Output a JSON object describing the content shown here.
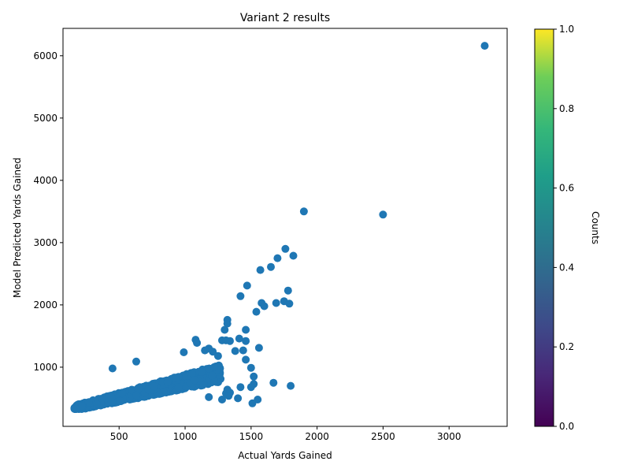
{
  "chart_data": {
    "type": "scatter",
    "title": "Variant 2 results",
    "xlabel": "Actual Yards Gained",
    "ylabel": "Model Predicted Yards Gained",
    "xlim": [
      75,
      3440
    ],
    "ylim": [
      50,
      6440
    ],
    "x_ticks": [
      500,
      1000,
      1500,
      2000,
      2500,
      3000
    ],
    "y_ticks": [
      1000,
      2000,
      3000,
      4000,
      5000,
      6000
    ],
    "marker_color": "#1f77b4",
    "grid": false,
    "colorbar": {
      "label": "Counts",
      "colormap": "viridis",
      "range": [
        0,
        1
      ],
      "ticks": [
        "0.0",
        "0.2",
        "0.4",
        "0.6",
        "0.8",
        "1.0"
      ]
    },
    "outliers": [
      {
        "x": 3270,
        "y": 6160
      },
      {
        "x": 1900,
        "y": 3500
      },
      {
        "x": 2500,
        "y": 3450
      },
      {
        "x": 1760,
        "y": 2900
      },
      {
        "x": 1820,
        "y": 2790
      },
      {
        "x": 1700,
        "y": 2750
      },
      {
        "x": 1650,
        "y": 2610
      },
      {
        "x": 1570,
        "y": 2560
      },
      {
        "x": 1470,
        "y": 2310
      },
      {
        "x": 1780,
        "y": 2230
      },
      {
        "x": 1420,
        "y": 2140
      },
      {
        "x": 1750,
        "y": 2060
      },
      {
        "x": 1690,
        "y": 2030
      },
      {
        "x": 1580,
        "y": 2030
      },
      {
        "x": 1600,
        "y": 1980
      },
      {
        "x": 1790,
        "y": 2020
      },
      {
        "x": 1540,
        "y": 1890
      },
      {
        "x": 1320,
        "y": 1760
      },
      {
        "x": 1320,
        "y": 1700
      },
      {
        "x": 1300,
        "y": 1600
      },
      {
        "x": 1460,
        "y": 1600
      },
      {
        "x": 1080,
        "y": 1440
      },
      {
        "x": 1090,
        "y": 1390
      },
      {
        "x": 1280,
        "y": 1430
      },
      {
        "x": 1310,
        "y": 1430
      },
      {
        "x": 1410,
        "y": 1460
      },
      {
        "x": 1460,
        "y": 1420
      },
      {
        "x": 1340,
        "y": 1420
      },
      {
        "x": 1560,
        "y": 1310
      },
      {
        "x": 1180,
        "y": 1300
      },
      {
        "x": 1150,
        "y": 1270
      },
      {
        "x": 1380,
        "y": 1260
      },
      {
        "x": 1440,
        "y": 1270
      },
      {
        "x": 990,
        "y": 1240
      },
      {
        "x": 1460,
        "y": 1120
      },
      {
        "x": 1500,
        "y": 990
      },
      {
        "x": 630,
        "y": 1090
      },
      {
        "x": 450,
        "y": 980
      },
      {
        "x": 1520,
        "y": 850
      },
      {
        "x": 1670,
        "y": 750
      },
      {
        "x": 1520,
        "y": 730
      },
      {
        "x": 1420,
        "y": 680
      },
      {
        "x": 1500,
        "y": 680
      },
      {
        "x": 1800,
        "y": 700
      },
      {
        "x": 1320,
        "y": 640
      },
      {
        "x": 1310,
        "y": 580
      },
      {
        "x": 1340,
        "y": 590
      },
      {
        "x": 1330,
        "y": 540
      },
      {
        "x": 1400,
        "y": 500
      },
      {
        "x": 1280,
        "y": 480
      },
      {
        "x": 1550,
        "y": 480
      },
      {
        "x": 1510,
        "y": 420
      },
      {
        "x": 1180,
        "y": 520
      },
      {
        "x": 1220,
        "y": 1000
      },
      {
        "x": 1250,
        "y": 1180
      },
      {
        "x": 1210,
        "y": 1250
      }
    ],
    "cluster": {
      "x_min": 160,
      "x_max": 1270,
      "y_base": 330,
      "y_slope": 0.48,
      "y_spread": 280,
      "count": 900
    }
  }
}
